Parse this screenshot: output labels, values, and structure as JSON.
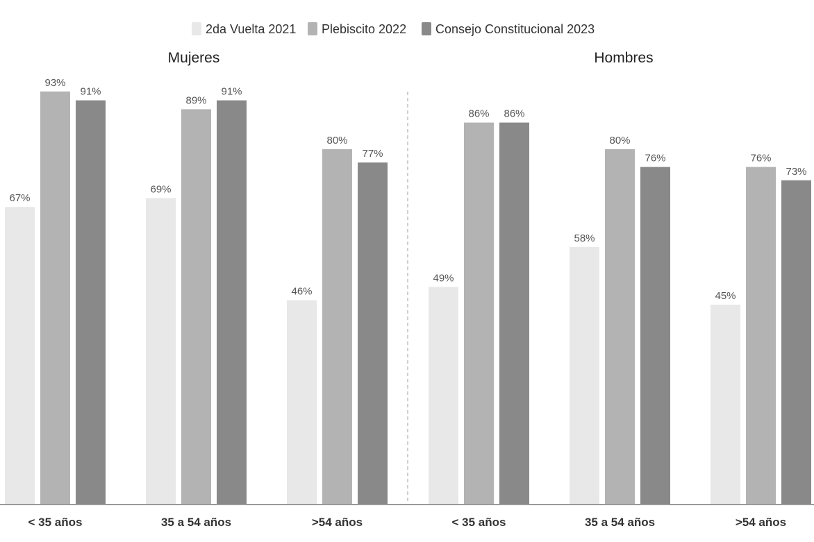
{
  "chart_data": {
    "type": "bar",
    "legend": {
      "position": "top-center",
      "entries": [
        {
          "name": "2da Vuelta 2021",
          "color": "#e8e8e8"
        },
        {
          "name": "Plebiscito 2022",
          "color": "#b3b3b3"
        },
        {
          "name": "Consejo Constitucional 2023",
          "color": "#898989"
        }
      ]
    },
    "ylim": [
      0,
      100
    ],
    "grid": false,
    "panels": [
      {
        "title": "Mujeres",
        "categories": [
          "< 35 años",
          "35 a 54 años",
          ">54 años"
        ],
        "series": [
          {
            "name": "2da Vuelta 2021",
            "values": [
              67,
              69,
              46
            ],
            "labels": [
              "67%",
              "69%",
              "46%"
            ]
          },
          {
            "name": "Plebiscito 2022",
            "values": [
              93,
              89,
              80
            ],
            "labels": [
              "93%",
              "89%",
              "80%"
            ]
          },
          {
            "name": "Consejo Constitucional 2023",
            "values": [
              91,
              91,
              77
            ],
            "labels": [
              "91%",
              "91%",
              "77%"
            ]
          }
        ]
      },
      {
        "title": "Hombres",
        "categories": [
          "< 35 años",
          "35 a 54 años",
          ">54 años"
        ],
        "series": [
          {
            "name": "2da Vuelta 2021",
            "values": [
              49,
              58,
              45
            ],
            "labels": [
              "49%",
              "58%",
              "45%"
            ]
          },
          {
            "name": "Plebiscito 2022",
            "values": [
              86,
              80,
              76
            ],
            "labels": [
              "86%",
              "80%",
              "76%"
            ]
          },
          {
            "name": "Consejo Constitucional 2023",
            "values": [
              86,
              76,
              73
            ],
            "labels": [
              "86%",
              "76%",
              "73%"
            ]
          }
        ]
      }
    ]
  }
}
